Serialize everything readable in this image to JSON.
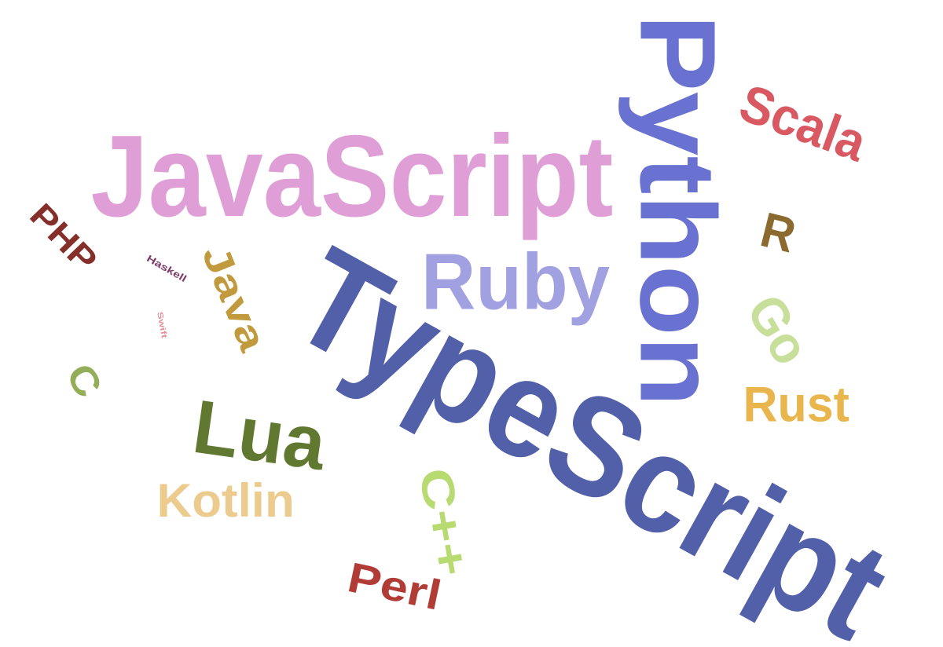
{
  "words": [
    {
      "id": "typescript",
      "text": "TypeScript",
      "color": "#525fa9"
    },
    {
      "id": "javascript",
      "text": "JavaScript",
      "color": "#df9fd6"
    },
    {
      "id": "python",
      "text": "Python",
      "color": "#6972d0"
    },
    {
      "id": "ruby",
      "text": "Ruby",
      "color": "#a1a1e1"
    },
    {
      "id": "scala",
      "text": "Scala",
      "color": "#d95963"
    },
    {
      "id": "r",
      "text": "R",
      "color": "#8a6a2e"
    },
    {
      "id": "go",
      "text": "Go",
      "color": "#c7df9a"
    },
    {
      "id": "rust",
      "text": "Rust",
      "color": "#e9b64e"
    },
    {
      "id": "lua",
      "text": "Lua",
      "color": "#60782f"
    },
    {
      "id": "kotlin",
      "text": "Kotlin",
      "color": "#eccc8e"
    },
    {
      "id": "cpp",
      "text": "C++",
      "color": "#b7db70"
    },
    {
      "id": "perl",
      "text": "Perl",
      "color": "#b13c36"
    },
    {
      "id": "java",
      "text": "Java",
      "color": "#c09a3c"
    },
    {
      "id": "php",
      "text": "PHP",
      "color": "#852f2a"
    },
    {
      "id": "c",
      "text": "C",
      "color": "#94ad59"
    },
    {
      "id": "haskell",
      "text": "Haskell",
      "color": "#7e3a6a"
    },
    {
      "id": "swift",
      "text": "Swift",
      "color": "#e4919b"
    }
  ]
}
